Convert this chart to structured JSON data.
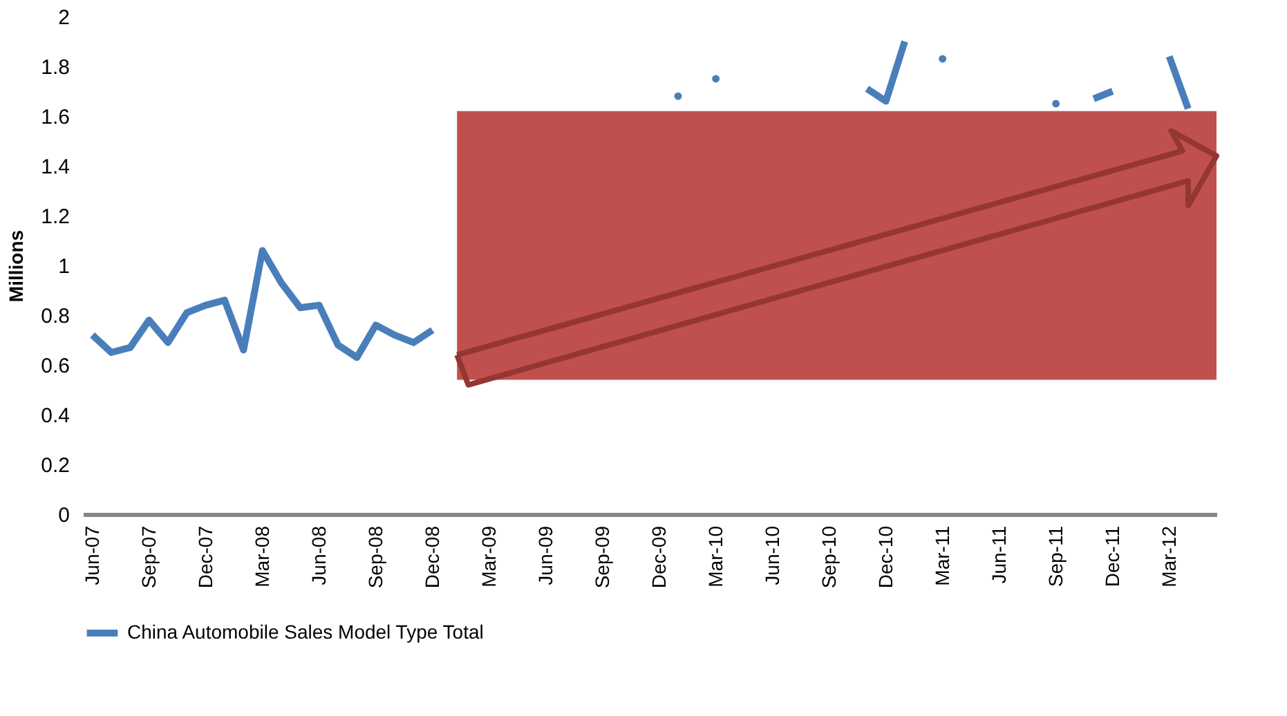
{
  "chart_data": {
    "type": "line",
    "ylabel": "Millions",
    "categories": [
      "Jun-07",
      null,
      null,
      "Sep-07",
      null,
      null,
      "Dec-07",
      null,
      null,
      "Mar-08",
      null,
      null,
      "Jun-08",
      null,
      null,
      "Sep-08",
      null,
      null,
      "Dec-08",
      null,
      null,
      "Mar-09",
      null,
      null,
      "Jun-09",
      null,
      null,
      "Sep-09",
      null,
      null,
      "Dec-09",
      null,
      null,
      "Mar-10",
      null,
      null,
      "Jun-10",
      null,
      null,
      "Sep-10",
      null,
      null,
      "Dec-10",
      null,
      null,
      "Mar-11",
      null,
      null,
      "Jun-11",
      null,
      null,
      "Sep-11",
      null,
      null,
      "Dec-11",
      null,
      null,
      "Mar-12",
      null,
      null
    ],
    "series": [
      {
        "name": "China Automobile Sales Model Type Total",
        "color": "#4a7ebb",
        "values": [
          0.72,
          0.65,
          0.67,
          0.78,
          0.69,
          0.81,
          0.84,
          0.86,
          0.66,
          1.06,
          0.93,
          0.83,
          0.84,
          0.68,
          0.63,
          0.76,
          0.72,
          0.69,
          0.74,
          null,
          null,
          null,
          null,
          null,
          null,
          null,
          null,
          null,
          null,
          null,
          null,
          1.68,
          null,
          1.75,
          null,
          null,
          null,
          null,
          null,
          null,
          null,
          1.71,
          1.66,
          1.9,
          null,
          1.83,
          null,
          null,
          null,
          null,
          null,
          1.65,
          null,
          1.67,
          1.7,
          null,
          null,
          1.84,
          1.63,
          null
        ]
      }
    ],
    "ylim": [
      0,
      2
    ],
    "yticks": [
      0,
      0.2,
      0.4,
      0.6,
      0.8,
      1,
      1.2,
      1.4,
      1.6,
      1.8,
      2
    ],
    "grid": false,
    "legend": "bottom",
    "marker": "none",
    "line_style": "solid"
  }
}
